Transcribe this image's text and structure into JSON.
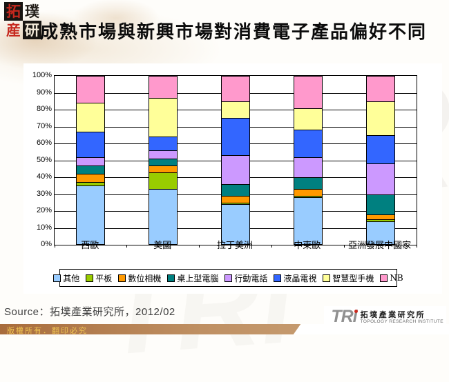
{
  "header": {
    "logo_chars": [
      "拓",
      "璞",
      "産",
      "研"
    ],
    "title": "成熟市場與新興市場對消費電子產品偏好不同"
  },
  "chart_data": {
    "type": "bar",
    "subtype": "stacked-percent",
    "title": "成熟市場與新興市場對消費電子產品偏好不同",
    "categories": [
      "西歐",
      "美國",
      "拉丁美洲",
      "中東歐",
      "亞洲發展中國家"
    ],
    "series": [
      {
        "name": "其他",
        "color": "#99ccff",
        "values": [
          35,
          33,
          24,
          28,
          14
        ]
      },
      {
        "name": "平板",
        "color": "#99cc00",
        "values": [
          2,
          10,
          1,
          1,
          1
        ]
      },
      {
        "name": "數位相機",
        "color": "#ff9900",
        "values": [
          5,
          4,
          4,
          4,
          3
        ]
      },
      {
        "name": "桌上型電腦",
        "color": "#008080",
        "values": [
          5,
          4,
          7,
          7,
          12
        ]
      },
      {
        "name": "行動電話",
        "color": "#cc99ff",
        "values": [
          5,
          5,
          17,
          12,
          18
        ]
      },
      {
        "name": "液晶電視",
        "color": "#3366ff",
        "values": [
          15,
          8,
          22,
          16,
          17
        ]
      },
      {
        "name": "智慧型手機",
        "color": "#ffff99",
        "values": [
          17,
          23,
          10,
          13,
          20
        ]
      },
      {
        "name": "NB",
        "color": "#ff99cc",
        "values": [
          16,
          13,
          15,
          19,
          15
        ]
      }
    ],
    "ylabel": "",
    "xlabel": "",
    "ylim": [
      0,
      100
    ],
    "ytick_step": 10,
    "yticks": [
      "0%",
      "10%",
      "20%",
      "30%",
      "40%",
      "50%",
      "60%",
      "70%",
      "80%",
      "90%",
      "100%"
    ],
    "grid": true,
    "legend_position": "bottom"
  },
  "source": {
    "label": "Source：拓墣產業研究所，2012/02"
  },
  "footer": {
    "copyright": "版權所有．翻印必究",
    "logo": {
      "acronym": "TRi",
      "name_zh": "拓墣產業研究所",
      "name_en": "TOPOLOGY RESEARCH INSTITUTE"
    }
  },
  "watermark": {
    "text": "TRi"
  }
}
